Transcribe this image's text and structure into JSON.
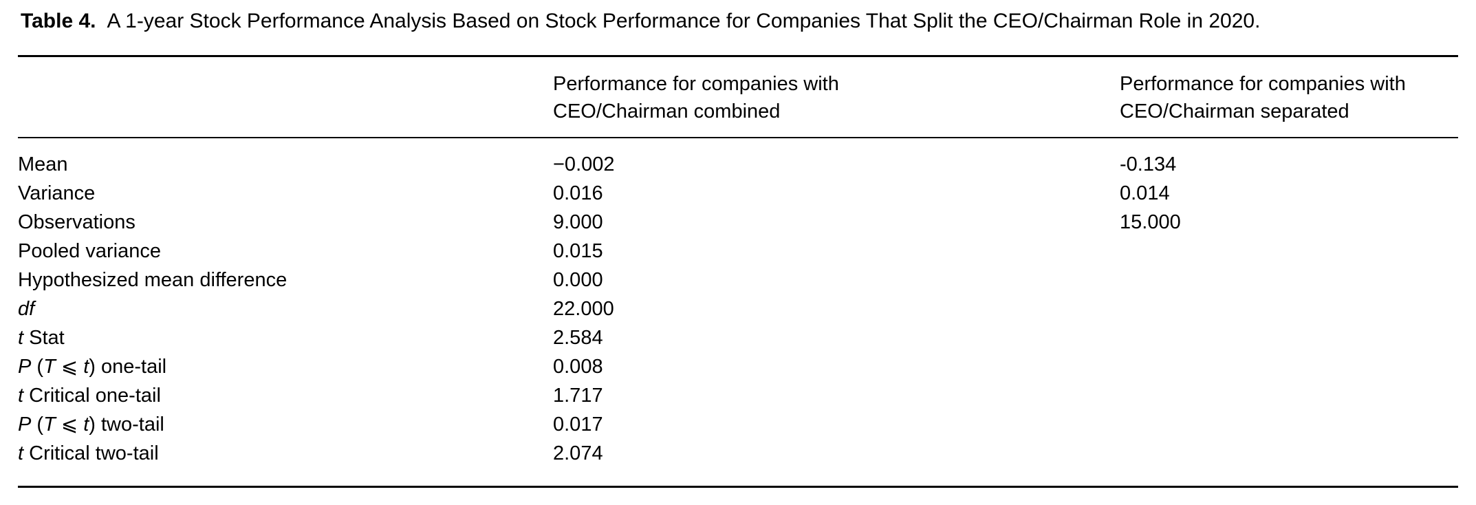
{
  "colors": {
    "text": "#000000",
    "background": "#ffffff"
  },
  "caption": {
    "label": "Table 4.",
    "text": "A 1-year Stock Performance Analysis Based on Stock Performance for Companies That Split the CEO/Chairman Role in 2020."
  },
  "table": {
    "header": {
      "metric": "",
      "combined_line1": "Performance for companies with",
      "combined_line2": "CEO/Chairman combined",
      "separated_line1": "Performance for companies with",
      "separated_line2": "CEO/Chairman separated"
    },
    "rows": [
      {
        "label": "Mean",
        "label_segments": [
          {
            "text": "Mean",
            "italic": false
          }
        ],
        "combined": "−0.002",
        "separated": "-0.134"
      },
      {
        "label": "Variance",
        "label_segments": [
          {
            "text": "Variance",
            "italic": false
          }
        ],
        "combined": "0.016",
        "separated": "0.014"
      },
      {
        "label": "Observations",
        "label_segments": [
          {
            "text": "Observations",
            "italic": false
          }
        ],
        "combined": "9.000",
        "separated": "15.000"
      },
      {
        "label": "Pooled variance",
        "label_segments": [
          {
            "text": "Pooled variance",
            "italic": false
          }
        ],
        "combined": "0.015",
        "separated": ""
      },
      {
        "label": "Hypothesized mean difference",
        "label_segments": [
          {
            "text": "Hypothesized mean difference",
            "italic": false
          }
        ],
        "combined": "0.000",
        "separated": ""
      },
      {
        "label": "df",
        "label_segments": [
          {
            "text": "df",
            "italic": true
          }
        ],
        "combined": "22.000",
        "separated": ""
      },
      {
        "label": "t Stat",
        "label_segments": [
          {
            "text": "t",
            "italic": true
          },
          {
            "text": " Stat",
            "italic": false
          }
        ],
        "combined": "2.584",
        "separated": ""
      },
      {
        "label": "P (T ⩽ t) one-tail",
        "label_segments": [
          {
            "text": "P",
            "italic": true
          },
          {
            "text": " (",
            "italic": false
          },
          {
            "text": "T",
            "italic": true
          },
          {
            "text": " ⩽ ",
            "italic": false
          },
          {
            "text": "t",
            "italic": true
          },
          {
            "text": ") one-tail",
            "italic": false
          }
        ],
        "combined": "0.008",
        "separated": ""
      },
      {
        "label": "t Critical one-tail",
        "label_segments": [
          {
            "text": "t",
            "italic": true
          },
          {
            "text": " Critical one-tail",
            "italic": false
          }
        ],
        "combined": "1.717",
        "separated": ""
      },
      {
        "label": "P (T ⩽ t) two-tail",
        "label_segments": [
          {
            "text": "P",
            "italic": true
          },
          {
            "text": " (",
            "italic": false
          },
          {
            "text": "T",
            "italic": true
          },
          {
            "text": " ⩽ ",
            "italic": false
          },
          {
            "text": "t",
            "italic": true
          },
          {
            "text": ") two-tail",
            "italic": false
          }
        ],
        "combined": "0.017",
        "separated": ""
      },
      {
        "label": "t Critical two-tail",
        "label_segments": [
          {
            "text": "t",
            "italic": true
          },
          {
            "text": " Critical two-tail",
            "italic": false
          }
        ],
        "combined": "2.074",
        "separated": ""
      }
    ]
  }
}
